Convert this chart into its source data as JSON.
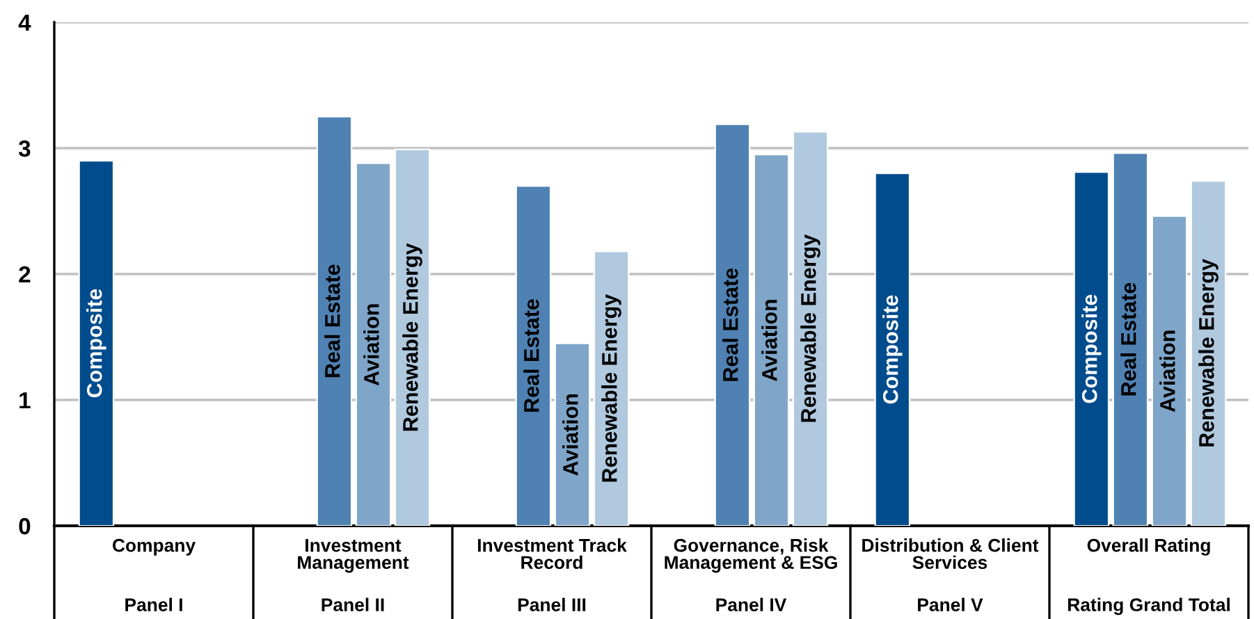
{
  "chart_data": {
    "type": "bar",
    "categories": [
      "Company",
      "Investment\nManagement",
      "Investment Track\nRecord",
      "Governance, Risk\nManagement & ESG",
      "Distribution & Client\nServices",
      "Overall Rating"
    ],
    "annotations": [
      "Panel I",
      "Panel II",
      "Panel III",
      "Panel IV",
      "Panel V",
      "Rating Grand Total"
    ],
    "series": [
      {
        "name": "Composite",
        "color": "#004c8c",
        "values": [
          2.9,
          null,
          null,
          null,
          2.8,
          2.81
        ]
      },
      {
        "name": "Real Estate",
        "color": "#4f81b3",
        "values": [
          null,
          3.25,
          2.7,
          3.19,
          null,
          2.96
        ]
      },
      {
        "name": "Aviation",
        "color": "#7fa6c9",
        "values": [
          null,
          2.88,
          1.45,
          2.95,
          null,
          2.46
        ]
      },
      {
        "name": "Renewable Energy",
        "color": "#b0c9df",
        "values": [
          null,
          2.99,
          2.18,
          3.13,
          null,
          2.74
        ]
      }
    ],
    "ylim": [
      0,
      4
    ],
    "yticks": [
      0,
      1,
      2,
      3,
      4
    ],
    "grid": "y"
  }
}
